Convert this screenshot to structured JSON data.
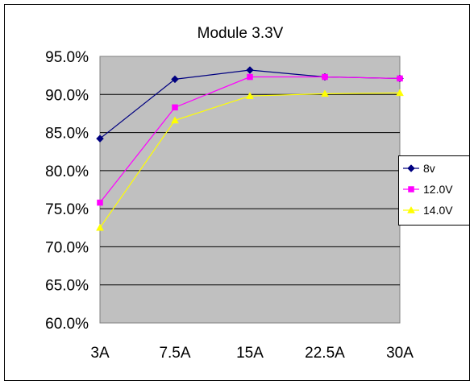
{
  "chart_data": {
    "type": "line",
    "title": "Module 3.3V",
    "xlabel": "",
    "ylabel": "",
    "categories": [
      "3A",
      "7.5A",
      "15A",
      "22.5A",
      "30A"
    ],
    "y_ticks": [
      "60.0%",
      "65.0%",
      "70.0%",
      "75.0%",
      "80.0%",
      "85.0%",
      "90.0%",
      "95.0%"
    ],
    "ylim": [
      60,
      95
    ],
    "grid": "horizontal",
    "legend_position": "right",
    "plot_background": "#C0C0C0",
    "series": [
      {
        "name": "8v",
        "color": "#000080",
        "marker": "diamond",
        "values": [
          84.2,
          92.0,
          93.2,
          92.3,
          92.1
        ]
      },
      {
        "name": "12.0V",
        "color": "#FF00FF",
        "marker": "square",
        "values": [
          75.8,
          88.3,
          92.3,
          92.3,
          92.1
        ]
      },
      {
        "name": "14.0V",
        "color": "#FFFF00",
        "marker": "triangle",
        "values": [
          72.5,
          86.6,
          89.8,
          90.1,
          90.2
        ]
      }
    ]
  }
}
